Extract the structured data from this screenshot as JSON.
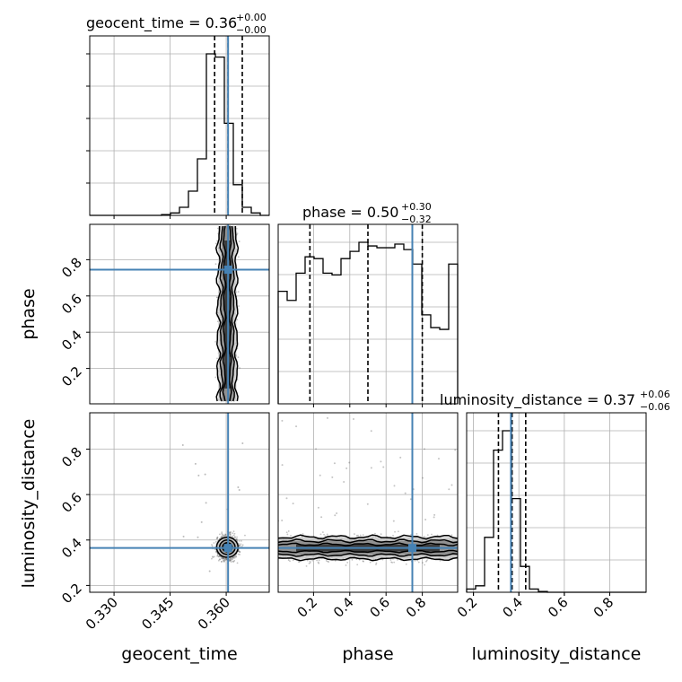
{
  "chart_data": {
    "type": "corner",
    "parameters": [
      "geocent_time",
      "phase",
      "luminosity_distance"
    ],
    "truths": {
      "geocent_time": 0.3605,
      "phase": 0.745,
      "luminosity_distance": 0.365
    },
    "ranges": {
      "geocent_time": [
        0.3235,
        0.3715
      ],
      "phase": [
        0.005,
        0.995
      ],
      "luminosity_distance": [
        0.17,
        0.96
      ]
    },
    "titles": [
      {
        "param": "geocent_time",
        "name": "geocent_time",
        "value": "0.36",
        "plus": "+0.00",
        "minus": "−0.00"
      },
      {
        "param": "phase",
        "name": "phase",
        "value": "0.50",
        "plus": "+0.30",
        "minus": "−0.32"
      },
      {
        "param": "luminosity_distance",
        "name": "luminosity_distance",
        "value": "0.37",
        "plus": "+0.06",
        "minus": "−0.06"
      }
    ],
    "axis_labels": {
      "x": [
        "geocent_time",
        "phase",
        "luminosity_distance"
      ],
      "y": [
        "phase",
        "luminosity_distance"
      ]
    },
    "ticks": {
      "geocent_time": {
        "values": [
          0.33,
          0.345,
          0.36
        ],
        "labels": [
          "0.330",
          "0.345",
          "0.360"
        ]
      },
      "phase": {
        "values": [
          0.2,
          0.4,
          0.6,
          0.8
        ],
        "labels": [
          "0.2",
          "0.4",
          "0.6",
          "0.8"
        ]
      },
      "luminosity_distance": {
        "values": [
          0.2,
          0.4,
          0.6,
          0.8
        ],
        "labels": [
          "0.2",
          "0.4",
          "0.6",
          "0.8"
        ]
      }
    },
    "quantiles": {
      "geocent_time": [
        0.3569,
        0.3605,
        0.3643
      ],
      "phase": [
        0.18,
        0.5,
        0.8
      ],
      "luminosity_distance": [
        0.31,
        0.37,
        0.43
      ]
    },
    "histograms": {
      "geocent_time": {
        "bins": 20,
        "counts": [
          0,
          0,
          0,
          0,
          0,
          0,
          0,
          0,
          0.5,
          1.5,
          5,
          15,
          35,
          100,
          98,
          57,
          19,
          5,
          1.5,
          0
        ]
      },
      "phase": {
        "bins": 20,
        "counts": [
          62,
          57,
          72,
          81,
          80,
          72,
          71,
          80,
          84,
          89,
          87,
          86,
          86,
          88,
          85,
          77,
          49,
          42,
          41,
          77
        ]
      },
      "luminosity_distance": {
        "bins": 20,
        "counts": [
          2,
          4,
          34,
          88,
          100,
          58,
          16,
          2,
          0.5,
          0,
          0,
          0,
          0,
          0,
          0,
          0,
          0,
          0,
          0,
          0
        ]
      }
    },
    "densities": {
      "phase_vs_geocent_time": {
        "x_center": 0.3603,
        "x_width": 0.0011,
        "y_range": [
          0.02,
          0.985
        ]
      },
      "luminosity_distance_vs_geocent_time": {
        "x_center": 0.3603,
        "x_width": 0.0013,
        "y_center": 0.368,
        "y_width": 0.02
      },
      "luminosity_distance_vs_phase": {
        "x_range": [
          0.0,
          1.0
        ],
        "y_center": 0.365,
        "y_width": 0.022
      }
    },
    "grid": true,
    "truth_color": "#4682b4",
    "hist_color": "#000000",
    "scatter_color": "#555555"
  }
}
